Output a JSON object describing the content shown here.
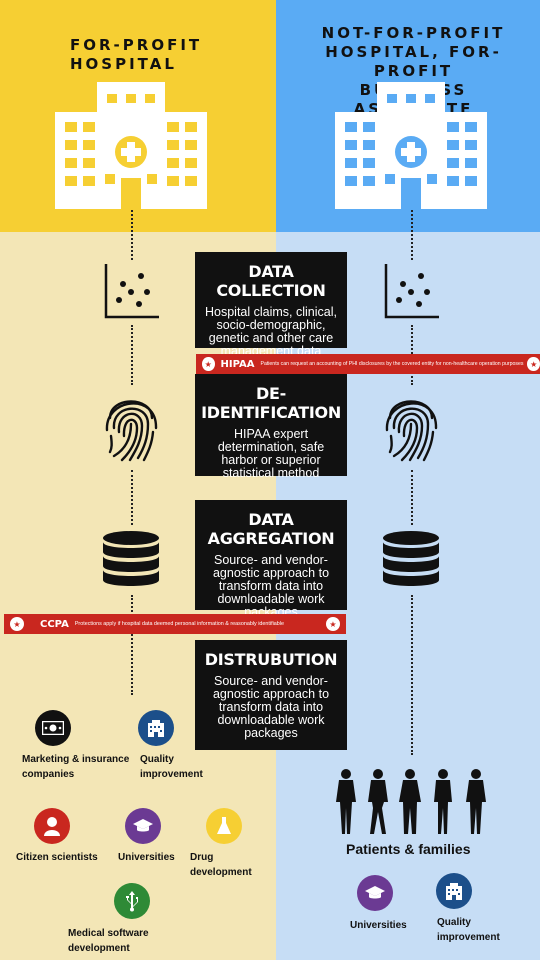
{
  "left_header": "FOR-PROFIT HOSPITAL",
  "right_header_lines": [
    "NOT-FOR-PROFIT",
    "HOSPITAL, FOR-PROFIT",
    "BUSINESS ASSOCIATE"
  ],
  "steps": [
    {
      "title": "DATA COLLECTION",
      "desc": "Hospital claims, clinical, socio-demographic, genetic and other care management data"
    },
    {
      "title": "DE-IDENTIFICATION",
      "desc": "HIPAA expert determination, safe harbor or superior statistical method"
    },
    {
      "title": "DATA AGGREGATION",
      "desc": "Source- and vendor-agnostic approach to transform data into downloadable work packages"
    },
    {
      "title": "DISTRUBUTION",
      "desc": "Source- and vendor-agnostic approach to transform data into downloadable work packages"
    }
  ],
  "hipaa": {
    "title": "HIPAA",
    "text": "Patients can request an accounting of PHI disclosures by the covered entity for non-healthcare operation purposes"
  },
  "ccpa": {
    "title": "CCPA",
    "text": "Protections apply if hospital data deemed personal information & reasonably identifiable"
  },
  "left_recipients": [
    {
      "label": "Marketing & insurance companies",
      "icon": "money-icon",
      "color": "#111111"
    },
    {
      "label": "Quality improvement",
      "icon": "hospital-icon",
      "color": "#1c4f8a"
    },
    {
      "label": "Citizen scientists",
      "icon": "person-icon",
      "color": "#c9271f"
    },
    {
      "label": "Universities",
      "icon": "graduation-cap-icon",
      "color": "#6b3a93"
    },
    {
      "label": "Drug development",
      "icon": "flask-icon",
      "color": "#f6cf33"
    },
    {
      "label": "Medical software development",
      "icon": "usb-icon",
      "color": "#2e8a36"
    }
  ],
  "right_recipients": [
    {
      "label": "Universities",
      "icon": "graduation-cap-icon",
      "color": "#6b3a93"
    },
    {
      "label": "Quality improvement",
      "icon": "hospital-icon",
      "color": "#1c4f8a"
    }
  ],
  "patients_label": "Patients & families"
}
